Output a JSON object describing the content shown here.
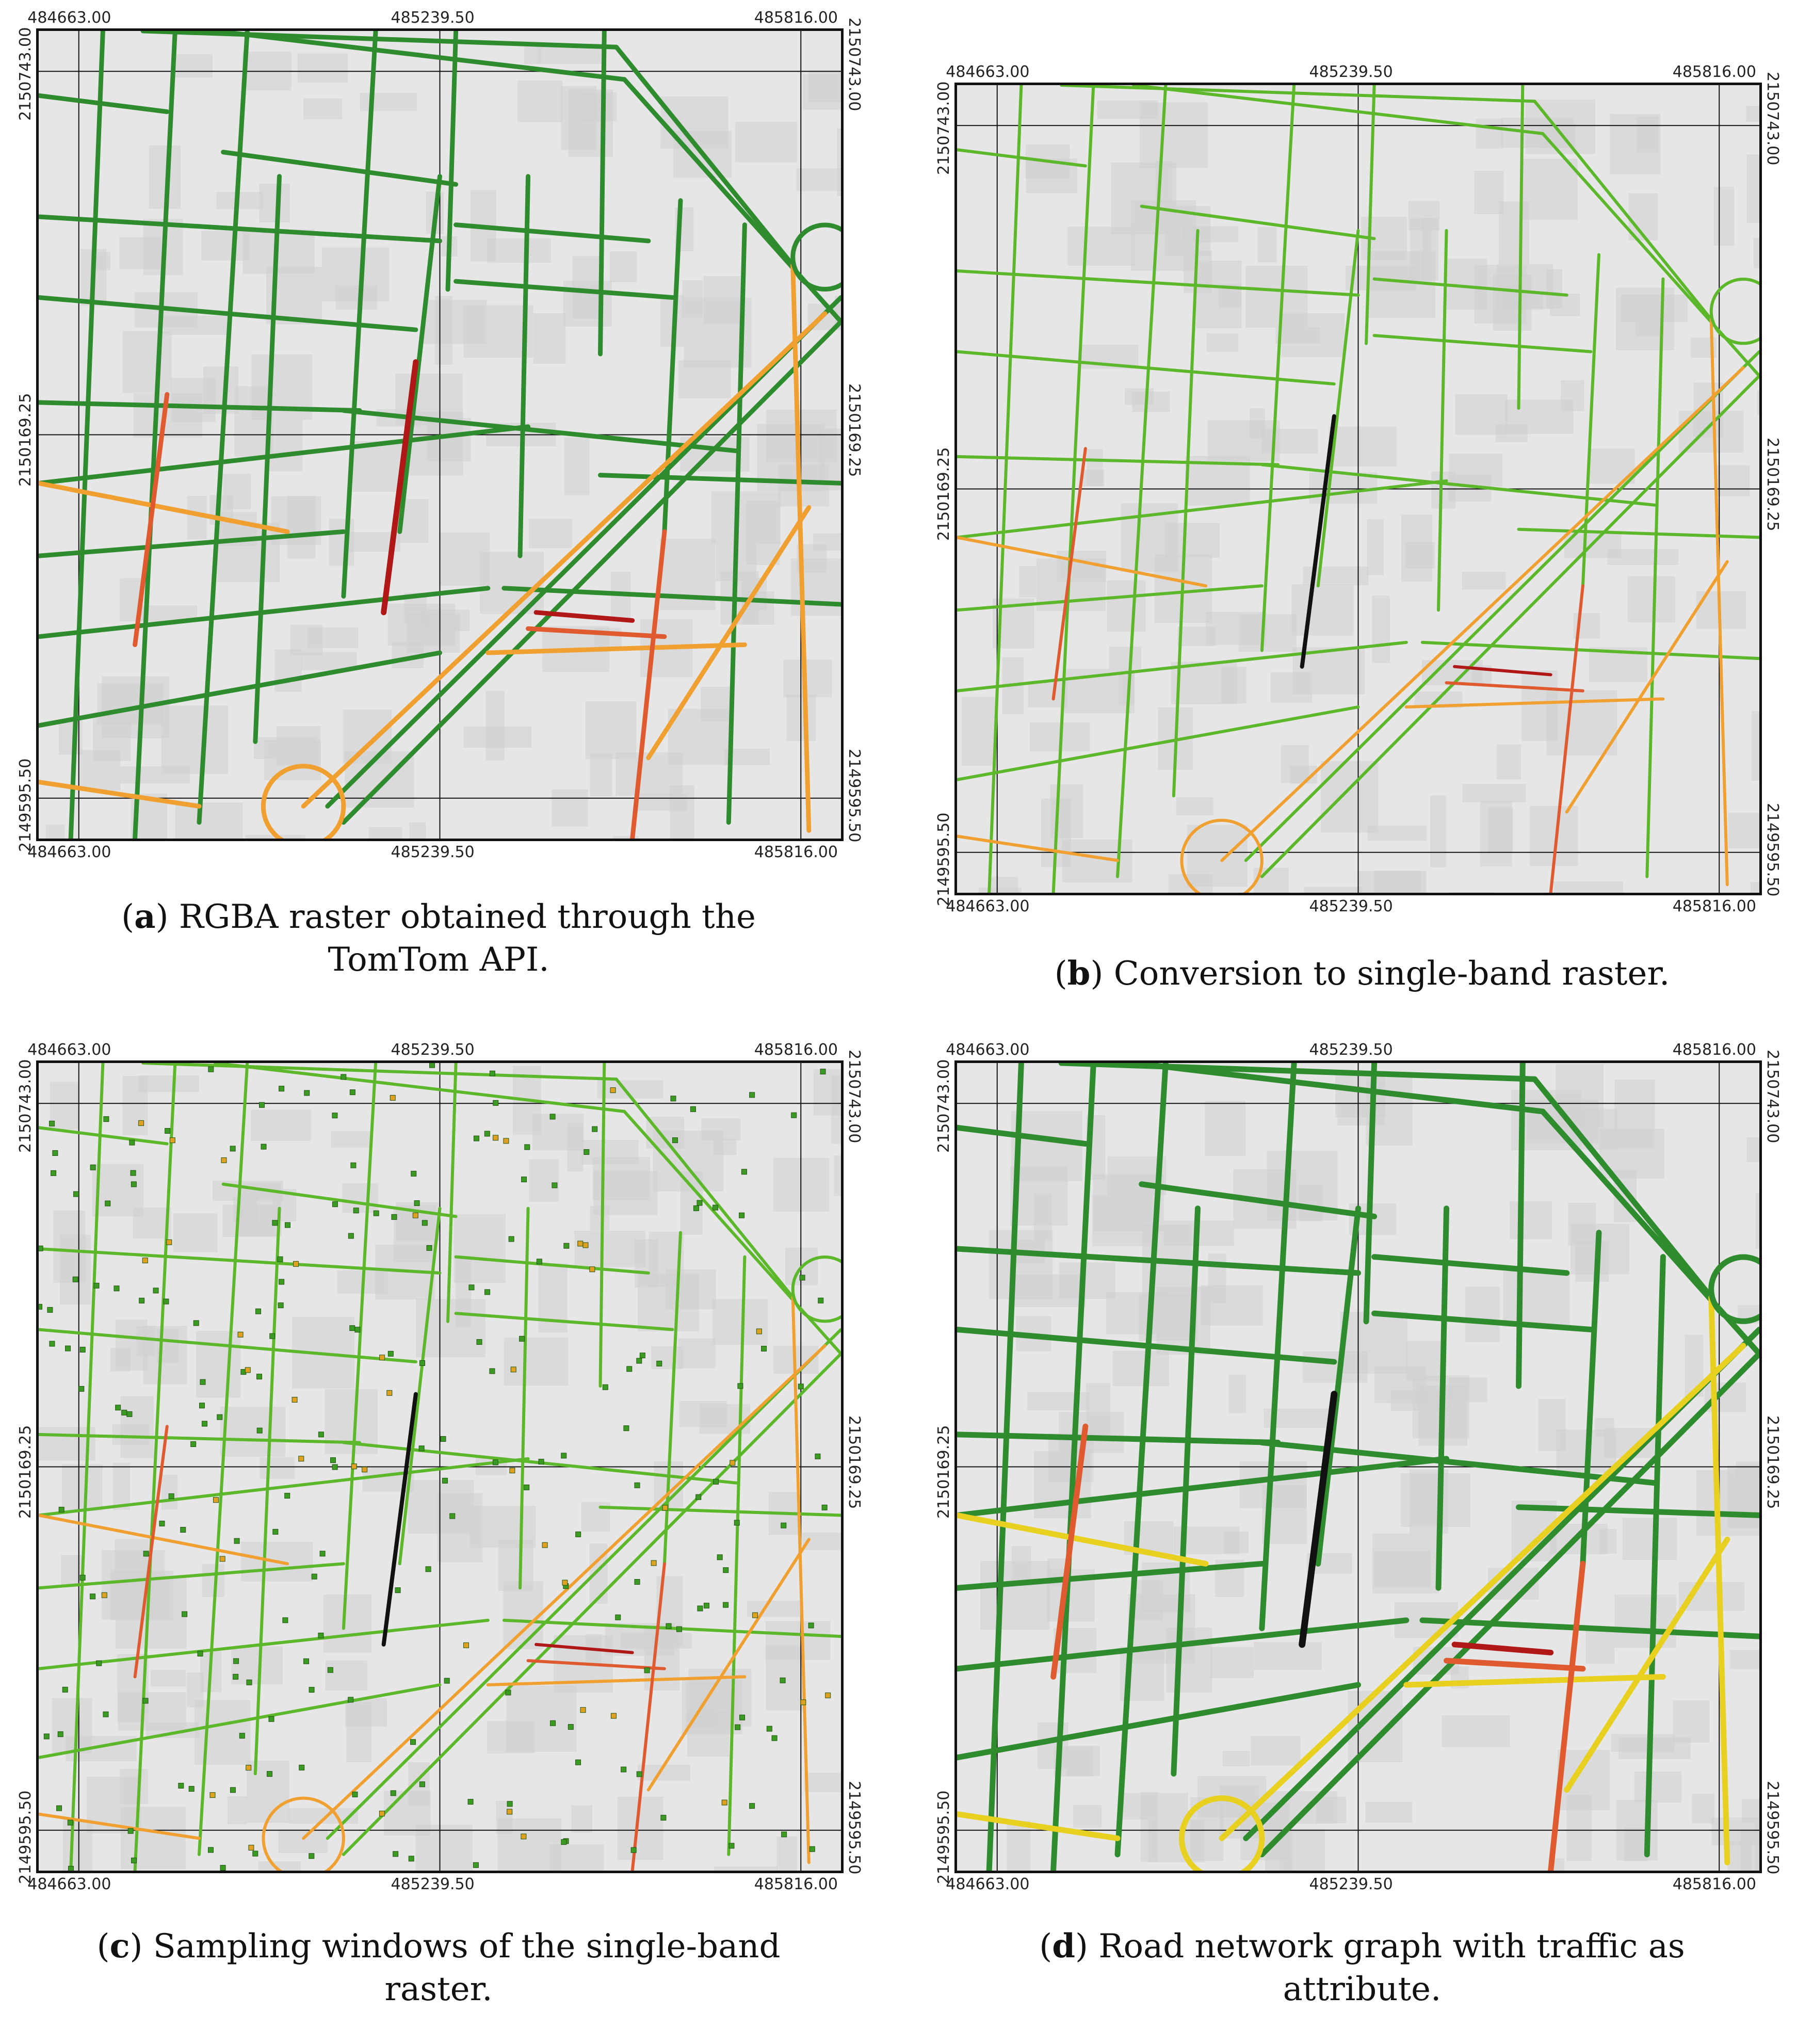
{
  "panels": [
    {
      "id": "a",
      "letter": "a",
      "caption_rest": ") RGBA raster obtained through the TomTom API.",
      "style": "rgba",
      "x_ticks": [
        "484663.00",
        "485239.50",
        "485816.00"
      ],
      "y_ticks": [
        "2150743.00",
        "2150169.25",
        "2149595.50"
      ]
    },
    {
      "id": "b",
      "letter": "b",
      "caption_rest": ") Conversion to single-band raster.",
      "style": "single-band",
      "x_ticks": [
        "484663.00",
        "485239.50",
        "485816.00"
      ],
      "y_ticks": [
        "2150743.00",
        "2150169.25",
        "2149595.50"
      ]
    },
    {
      "id": "c",
      "letter": "c",
      "caption_rest": ") Sampling windows of the single-band raster.",
      "style": "sampling",
      "x_ticks": [
        "484663.00",
        "485239.50",
        "485816.00"
      ],
      "y_ticks": [
        "2150743.00",
        "2150169.25",
        "2149595.50"
      ]
    },
    {
      "id": "d",
      "letter": "d",
      "caption_rest": ") Road network graph with traffic as attribute.",
      "style": "graph",
      "x_ticks": [
        "484663.00",
        "485239.50",
        "485816.00"
      ],
      "y_ticks": [
        "2150743.00",
        "2150169.25",
        "2149595.50"
      ]
    }
  ],
  "colors": {
    "background": "#e6e6e6",
    "blocks": "#cfcfcf",
    "green_dark": "#2e8b2e",
    "green_light": "#5cb82a",
    "orange": "#f0a030",
    "yellow": "#e8d020",
    "red": "#e05a30",
    "dark_red": "#b01818",
    "black": "#111111"
  }
}
